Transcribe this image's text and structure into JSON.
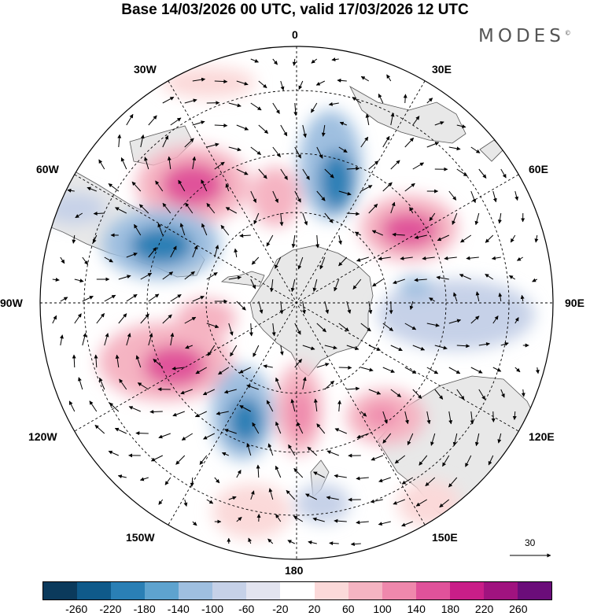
{
  "title": "Base 14/03/2026 00 UTC, valid 17/03/2026 12 UTC",
  "brand": "MODES",
  "brand_mark": "©",
  "lon_labels": {
    "top": "0",
    "bottom": "180",
    "left": "90W",
    "right": "90E",
    "nw_upper": "30W",
    "nw_lower": "60W",
    "ne_upper": "30E",
    "ne_lower": "60E",
    "sw_upper": "120W",
    "sw_lower": "150W",
    "se_upper": "120E",
    "se_lower": "150E"
  },
  "vector_scale": {
    "label": "30"
  },
  "colorbar": {
    "colors": [
      "#0b3a5c",
      "#0f5a8a",
      "#2a7fb5",
      "#5ea3cf",
      "#9fbfe0",
      "#c6d1e8",
      "#e3e4f0",
      "#ffffff",
      "#fbd9d9",
      "#f5b4c2",
      "#ef88ac",
      "#e0529a",
      "#c91e88",
      "#a0137f",
      "#6b0d7a"
    ],
    "ticks": [
      "-260",
      "-220",
      "-180",
      "-140",
      "-100",
      "-60",
      "-20",
      "20",
      "60",
      "100",
      "140",
      "180",
      "220",
      "260"
    ]
  },
  "chart_data": {
    "type": "polar-stereographic-anomaly-map",
    "title": "Base 14/03/2026 00 UTC, valid 17/03/2026 12 UTC",
    "projection": "south polar stereographic",
    "contour_levels": [
      -260,
      -220,
      -180,
      -140,
      -100,
      -60,
      -20,
      20,
      60,
      100,
      140,
      180,
      220,
      260
    ],
    "centers": [
      {
        "lon": -45,
        "lat": -50,
        "value": 180,
        "sign": "positive"
      },
      {
        "lon": -70,
        "lat": -52,
        "value": -180,
        "sign": "negative"
      },
      {
        "lon": 12,
        "lat": -52,
        "value": -160,
        "sign": "negative"
      },
      {
        "lon": -20,
        "lat": -62,
        "value": 100,
        "sign": "positive"
      },
      {
        "lon": 55,
        "lat": -55,
        "value": 160,
        "sign": "positive"
      },
      {
        "lon": 95,
        "lat": -52,
        "value": -120,
        "sign": "negative"
      },
      {
        "lon": -100,
        "lat": -68,
        "value": 100,
        "sign": "positive"
      },
      {
        "lon": -115,
        "lat": -55,
        "value": 180,
        "sign": "positive"
      },
      {
        "lon": -155,
        "lat": -58,
        "value": -180,
        "sign": "negative"
      },
      {
        "lon": 170,
        "lat": -63,
        "value": 140,
        "sign": "positive"
      },
      {
        "lon": 132,
        "lat": -50,
        "value": 120,
        "sign": "positive"
      }
    ]
  }
}
